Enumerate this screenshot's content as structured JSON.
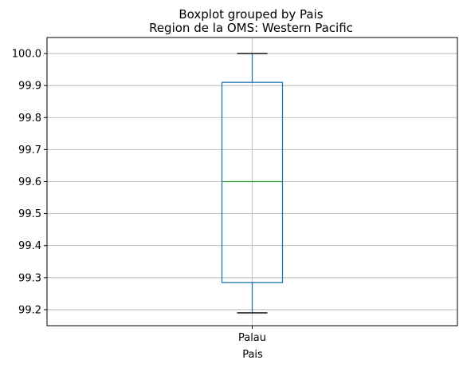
{
  "chart_data": {
    "type": "boxplot",
    "suptitle": "Boxplot grouped by Pais",
    "title": "Region de la OMS: Western Pacific",
    "xlabel": "Pais",
    "ylabel": "",
    "categories": [
      "Palau"
    ],
    "boxes": [
      {
        "category": "Palau",
        "min": 99.19,
        "q1": 99.285,
        "median": 99.6,
        "q3": 99.91,
        "max": 100.0
      }
    ],
    "ylim": [
      99.15,
      100.05
    ],
    "yticks": [
      99.2,
      99.3,
      99.4,
      99.5,
      99.6,
      99.7,
      99.8,
      99.9,
      100.0
    ],
    "ytick_labels": [
      "99.2",
      "99.3",
      "99.4",
      "99.5",
      "99.6",
      "99.7",
      "99.8",
      "99.9",
      "100.0"
    ],
    "grid": true,
    "colors": {
      "box": "#1f77b4",
      "median": "#2ca02c",
      "grid": "#b0b0b0"
    }
  }
}
